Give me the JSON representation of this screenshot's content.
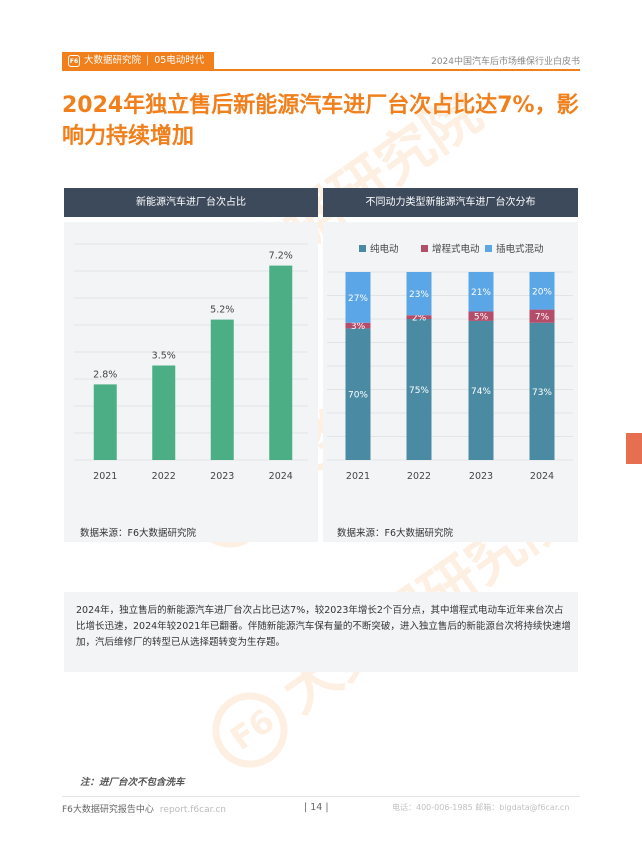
{
  "header": {
    "brand": "大数据研究院",
    "section": "05电动时代",
    "report_title": "2024中国汽车后市场维保行业白皮书"
  },
  "title": "2024年独立售后新能源汽车进厂台次占比达7%，影响力持续增加",
  "left_panel": {
    "heading": "新能源汽车进厂台次占比",
    "source": "数据来源：F6大数据研究院"
  },
  "right_panel": {
    "heading": "不同动力类型新能源汽车进厂台次分布",
    "source": "数据来源：F6大数据研究院"
  },
  "chart_data": [
    {
      "type": "bar",
      "categories": [
        "2021",
        "2022",
        "2023",
        "2024"
      ],
      "values": [
        2.8,
        3.5,
        5.2,
        7.2
      ],
      "data_labels": [
        "2.8%",
        "3.5%",
        "5.2%",
        "7.2%"
      ],
      "ylim": [
        0,
        8
      ],
      "grid": true,
      "color": "#4cae85"
    },
    {
      "type": "bar",
      "stacked": true,
      "percent": true,
      "categories": [
        "2021",
        "2022",
        "2023",
        "2024"
      ],
      "legend_position": "top",
      "series": [
        {
          "name": "纯电动",
          "values": [
            70,
            75,
            74,
            73
          ],
          "color": "#4a8ba3"
        },
        {
          "name": "增程式电动",
          "values": [
            3,
            2,
            5,
            7
          ],
          "color": "#b44d6a"
        },
        {
          "name": "插电式混动",
          "values": [
            27,
            23,
            21,
            20
          ],
          "color": "#5aa6e6"
        }
      ],
      "ylim": [
        0,
        100
      ],
      "grid": true
    }
  ],
  "summary": "2024年，独立售后的新能源汽车进厂台次占比已达7%，较2023年增长2个百分点，其中增程式电动车近年来台次占比增长迅速，2024年较2021年已翻番。伴随新能源汽车保有量的不断突破，进入独立售后的新能源台次将持续快速增加，汽后维修厂的转型已从选择题转变为生存题。",
  "note": "注：进厂台次不包含洗车",
  "footer": {
    "center_name": "F6大数据研究报告中心",
    "website": "report.f6car.cn",
    "page_number": "14",
    "contact": "电话：400-006-1985  邮箱：bigdata@f6car.cn"
  },
  "watermark_text": "大数据研究院",
  "colors": {
    "accent": "#f07f1c",
    "panel_head": "#3d4a5c",
    "panel_bg": "#f3f4f6"
  }
}
